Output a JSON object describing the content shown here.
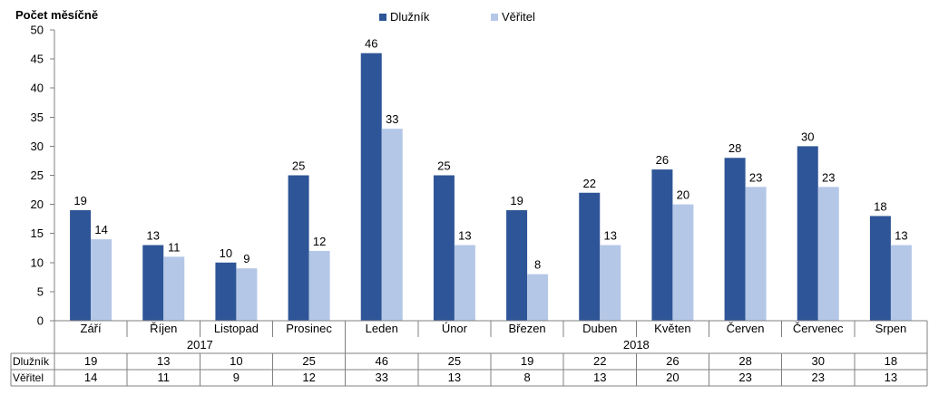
{
  "chart_data": {
    "type": "bar",
    "ylabel": "Počet měsíčně",
    "ylim": [
      0,
      50
    ],
    "yticks": [
      "0",
      "5",
      "10",
      "15",
      "20",
      "25",
      "30",
      "35",
      "40",
      "45",
      "50"
    ],
    "grid": false,
    "legend_position": "top",
    "categories": [
      "Září",
      "Říjen",
      "Listopad",
      "Prosinec",
      "Leden",
      "Únor",
      "Březen",
      "Duben",
      "Květen",
      "Červen",
      "Červenec",
      "Srpen"
    ],
    "year_groups": [
      {
        "label": "2017",
        "count": 4
      },
      {
        "label": "2018",
        "count": 8
      }
    ],
    "series": [
      {
        "name": "Dlužník",
        "color": "#2e5597",
        "values": [
          19,
          13,
          10,
          25,
          46,
          25,
          19,
          22,
          26,
          28,
          30,
          18
        ]
      },
      {
        "name": "Věřitel",
        "color": "#b4c7e7",
        "values": [
          14,
          11,
          9,
          12,
          33,
          13,
          8,
          13,
          20,
          23,
          23,
          13
        ]
      }
    ],
    "data_table": true
  }
}
